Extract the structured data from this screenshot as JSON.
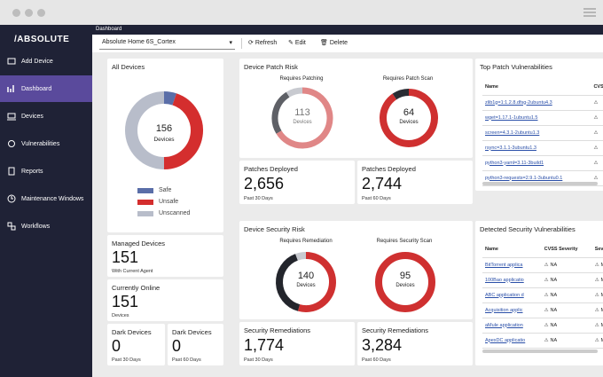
{
  "breadcrumb": "Dashboard",
  "sidebar": {
    "logo": "/ABSOLUTE",
    "items": [
      "Add Device",
      "Dashboard",
      "Devices",
      "Vulnerabilities",
      "Reports",
      "Maintenance Windows",
      "Workflows"
    ]
  },
  "toolbar": {
    "dashboard_select": "Absolute Home 6S_Cortex",
    "actions": [
      "Refresh",
      "Edit",
      "Delete"
    ]
  },
  "all_devices": {
    "title": "All Devices",
    "total": 156,
    "total_label": "Devices",
    "segments": [
      {
        "name": "Safe",
        "color": "#5a6ea8",
        "value": 8
      },
      {
        "name": "Unsafe",
        "color": "#d42e2e",
        "value": 70
      },
      {
        "name": "Unscanned",
        "color": "#b8bdca",
        "value": 78
      }
    ]
  },
  "managed_devices": {
    "title": "Managed Devices",
    "value": 151,
    "caption": "With Current Agent"
  },
  "currently_online": {
    "title": "Currently Online",
    "value": 151,
    "caption": "Devices"
  },
  "dark_devices": [
    {
      "title": "Dark Devices",
      "value": 0,
      "caption": "Past 30 Days"
    },
    {
      "title": "Dark Devices",
      "value": 0,
      "caption": "Past 60 Days"
    }
  ],
  "device_patch_risk": {
    "title": "Device Patch Risk",
    "charts": [
      {
        "title": "Requires Patching",
        "total": 113,
        "total_label": "Devices",
        "segments": [
          {
            "color": "#e08787",
            "value": 75
          },
          {
            "color": "#5e6066",
            "value": 28
          },
          {
            "color": "#c8cad0",
            "value": 10
          }
        ]
      },
      {
        "title": "Requires Patch Scan",
        "total": 64,
        "total_label": "Devices",
        "segments": [
          {
            "color": "#cf3030",
            "value": 58
          },
          {
            "color": "#2a2c33",
            "value": 6
          }
        ]
      }
    ]
  },
  "patches_deployed": [
    {
      "title": "Patches Deployed",
      "value": "2,656",
      "caption": "Past 30 Days"
    },
    {
      "title": "Patches Deployed",
      "value": "2,744",
      "caption": "Past 60 Days"
    }
  ],
  "top_patch_vulnerabilities": {
    "title": "Top Patch Vulnerabilities",
    "columns": [
      "Name",
      "CVSS"
    ],
    "rows": [
      "zlib1g=1:1.2.8.dfsg-2ubuntu4.3",
      "wget=1.17.1-1ubuntu1.5",
      "screen=4.3.1-2ubuntu1.3",
      "rsync=3.1.1-3ubuntu1.3",
      "python3-yaml=3.11-3build1",
      "python3-requests=2.9.1-3ubuntu0.1"
    ]
  },
  "device_security_risk": {
    "title": "Device Security Risk",
    "charts": [
      {
        "title": "Requires Remediation",
        "total": 140,
        "total_label": "Devices",
        "segments": [
          {
            "color": "#cf3030",
            "value": 76
          },
          {
            "color": "#23252c",
            "value": 56
          },
          {
            "color": "#c8cad0",
            "value": 8
          }
        ]
      },
      {
        "title": "Requires Security Scan",
        "total": 95,
        "total_label": "Devices",
        "segments": [
          {
            "color": "#cf3030",
            "value": 95
          }
        ]
      }
    ]
  },
  "security_remediations": [
    {
      "title": "Security Remediations",
      "value": "1,774",
      "caption": "Past 30 Days"
    },
    {
      "title": "Security Remediations",
      "value": "3,284",
      "caption": "Past 60 Days"
    }
  ],
  "detected_security_vulnerabilities": {
    "title": "Detected Security Vulnerabilities",
    "columns": [
      "Name",
      "CVSS Severity",
      "Severity"
    ],
    "rows": [
      [
        "BitTorrent applica",
        "NA",
        "Mediu"
      ],
      [
        "100Bao applicatio",
        "NA",
        "Mediu"
      ],
      [
        "ABC application d",
        "NA",
        "Mediu"
      ],
      [
        "Acquisition applic",
        "NA",
        "Mediu"
      ],
      [
        "aMule application",
        "NA",
        "Mediu"
      ],
      [
        "ApexDC applicatio",
        "NA",
        "Mediu"
      ]
    ]
  }
}
